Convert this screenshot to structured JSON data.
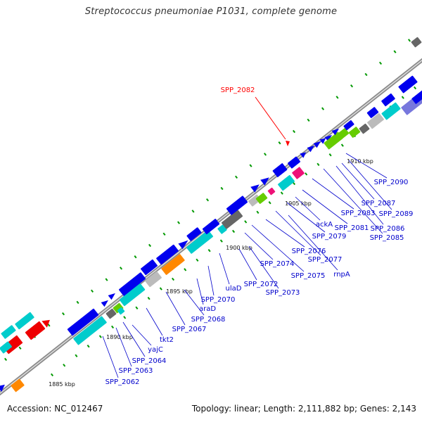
{
  "title": "Streptococcus pneumoniae P1031, complete genome",
  "footer": {
    "accession": "Accession: NC_012467",
    "summary": "Topology: linear; Length: 2,111,882 bp; Genes: 2,143"
  },
  "highlight": {
    "label": "SPP_2082",
    "color": "#ff0000"
  },
  "scale_labels": [
    "1885 kbp",
    "1890 kbp",
    "1895 kbp",
    "1900 kbp",
    "1905 kbp",
    "1910 kbp"
  ],
  "gene_labels": [
    "SPP_2062",
    "SPP_2063",
    "SPP_2064",
    "yajC",
    "tkt2",
    "SPP_2067",
    "SPP_2068",
    "araD",
    "SPP_2070",
    "ulaD",
    "SPP_2072",
    "SPP_2073",
    "SPP_2074",
    "SPP_2075",
    "SPP_2076",
    "SPP_2077",
    "rnpA",
    "SPP_2079",
    "ackA",
    "SPP_2081",
    "SPP_2083",
    "SPP_2085",
    "SPP_2086",
    "SPP_2087",
    "SPP_2089",
    "SPP_2090"
  ],
  "colors": {
    "gene_blue": "#0000ee",
    "gene_cyan": "#00cccc",
    "gene_gray": "#666666",
    "gene_silver": "#bbbbbb",
    "gene_orange": "#ff8800",
    "gene_green": "#66cc00",
    "gene_pink": "#ee1177",
    "gene_red": "#ee0000",
    "gene_purple": "#7777dd",
    "label_blue": "#0000cc",
    "tick_green": "#009900",
    "axis_gray": "#777777"
  }
}
